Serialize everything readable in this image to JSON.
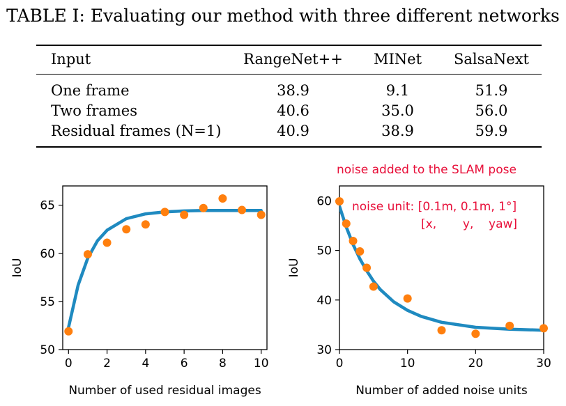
{
  "table": {
    "caption": "TABLE I: Evaluating our method with three different networks",
    "headers": [
      "Input",
      "RangeNet++",
      "MINet",
      "SalsaNext"
    ],
    "rows": [
      [
        "One frame",
        "38.9",
        "9.1",
        "51.9"
      ],
      [
        "Two frames",
        "40.6",
        "35.0",
        "56.0"
      ],
      [
        "Residual frames (N=1)",
        "40.9",
        "38.9",
        "59.9"
      ]
    ]
  },
  "chart_data": [
    {
      "type": "scatter",
      "xlabel": "Number of used residual images",
      "ylabel": "IoU",
      "xlim": [
        -0.3,
        10.3
      ],
      "ylim": [
        50,
        67
      ],
      "xticks": [
        0,
        2,
        4,
        6,
        8,
        10
      ],
      "yticks": [
        50,
        55,
        60,
        65
      ],
      "points": {
        "x": [
          0,
          1,
          2,
          3,
          4,
          5,
          6,
          7,
          8,
          9,
          10
        ],
        "y": [
          51.9,
          59.9,
          61.1,
          62.5,
          63.0,
          64.3,
          64.0,
          64.7,
          65.7,
          64.5,
          64.0
        ]
      },
      "fit": {
        "x": [
          0,
          0.5,
          1,
          1.5,
          2,
          3,
          4,
          5,
          6,
          7,
          8,
          9,
          10
        ],
        "y": [
          52.3,
          56.7,
          59.5,
          61.3,
          62.4,
          63.6,
          64.1,
          64.3,
          64.4,
          64.45,
          64.45,
          64.45,
          64.45
        ]
      },
      "colors": {
        "points": "#ff7f0e",
        "fit": "#1f8ac0"
      }
    },
    {
      "type": "scatter",
      "title": "noise added to the SLAM pose",
      "annotation": [
        "noise unit: [0.1m, 0.1m, 1°]",
        "[x,       y,    yaw]"
      ],
      "xlabel": "Number of added noise units",
      "ylabel": "IoU",
      "xlim": [
        0,
        30
      ],
      "ylim": [
        30,
        63
      ],
      "xticks": [
        0,
        10,
        20,
        30
      ],
      "yticks": [
        30,
        40,
        50,
        60
      ],
      "points": {
        "x": [
          0,
          1,
          2,
          3,
          4,
          5,
          10,
          15,
          20,
          25,
          30
        ],
        "y": [
          59.9,
          55.4,
          51.9,
          49.8,
          46.5,
          42.7,
          40.3,
          33.9,
          33.2,
          34.8,
          34.3
        ]
      },
      "fit": {
        "x": [
          0,
          1,
          2,
          3,
          4,
          5,
          6,
          8,
          10,
          12,
          15,
          20,
          25,
          30
        ],
        "y": [
          58.9,
          54.7,
          51.2,
          48.3,
          45.9,
          43.8,
          42.1,
          39.6,
          37.9,
          36.7,
          35.5,
          34.5,
          34.1,
          33.9
        ]
      },
      "colors": {
        "points": "#ff7f0e",
        "fit": "#1f8ac0",
        "annotation": "#e8103a"
      }
    }
  ]
}
